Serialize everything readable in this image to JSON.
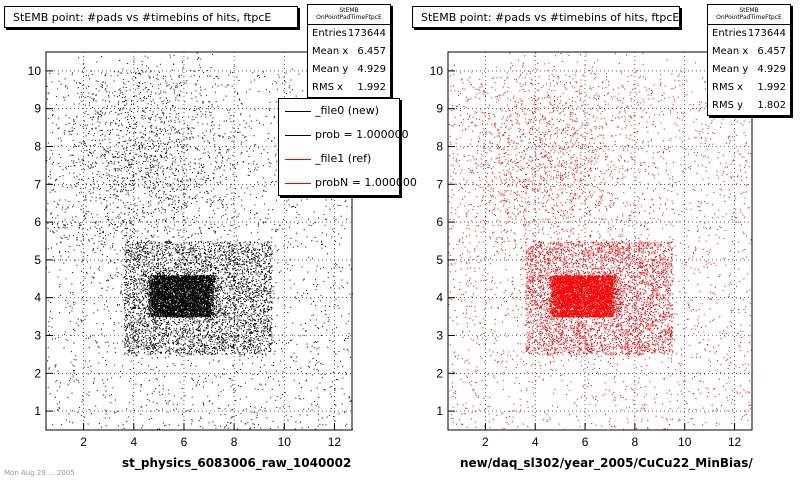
{
  "chart_data": [
    {
      "type": "scatter",
      "title": "StEMB point: #pads vs #timebins of hits, ftpcE",
      "xlabel": "st_physics_6083006_raw_1040002",
      "ylabel": "",
      "xlim": [
        0.5,
        12.7
      ],
      "ylim": [
        0.5,
        10.5
      ],
      "xticks": [
        2,
        4,
        6,
        8,
        10,
        12
      ],
      "yticks": [
        1,
        2,
        3,
        4,
        5,
        6,
        7,
        8,
        9,
        10
      ],
      "grid": true,
      "marker_color": "#000000",
      "series": [
        {
          "name": "_file0 (new)",
          "points_description_omitted": true,
          "core": {
            "x": [
              3.6,
              9.5
            ],
            "y": [
              2.5,
              5.5
            ]
          },
          "dense": {
            "x": [
              4.5,
              7.0
            ],
            "y": [
              3.5,
              4.6
            ]
          }
        }
      ],
      "stats": {
        "header": "StEMB OnPointPadTimeFtpcE",
        "rows": [
          {
            "label": "Entries",
            "value": "173644"
          },
          {
            "label": "Mean x",
            "value": "6.457"
          },
          {
            "label": "Mean y",
            "value": "4.929"
          },
          {
            "label": "RMS x",
            "value": "1.992"
          }
        ]
      },
      "legend": {
        "placement": "top-right",
        "entries": [
          {
            "label": "_file0 (new)",
            "color": "#000000"
          },
          {
            "label": "prob = 1.000000",
            "color": "#000000"
          },
          {
            "label": "_file1 (ref)",
            "color": "#ff0000"
          },
          {
            "label": "probN = 1.000000",
            "color": "#ff0000"
          }
        ]
      }
    },
    {
      "type": "scatter",
      "title": "StEMB point: #pads vs #timebins of hits, ftpcE",
      "xlabel": "new/daq_sl302/year_2005/CuCu22_MinBias/",
      "ylabel": "",
      "xlim": [
        0.5,
        12.7
      ],
      "ylim": [
        0.5,
        10.5
      ],
      "xticks": [
        2,
        4,
        6,
        8,
        10,
        12
      ],
      "yticks": [
        1,
        2,
        3,
        4,
        5,
        6,
        7,
        8,
        9,
        10
      ],
      "grid": true,
      "marker_color": "#ff0000",
      "series": [
        {
          "name": "_file1 (ref)",
          "core": {
            "x": [
              3.6,
              9.5
            ],
            "y": [
              2.5,
              5.5
            ]
          },
          "dense": {
            "x": [
              4.5,
              7.0
            ],
            "y": [
              3.5,
              4.6
            ]
          }
        }
      ],
      "stats": {
        "header": "StEMB OnPointPadTimeFtpcE",
        "rows": [
          {
            "label": "Entries",
            "value": "173644"
          },
          {
            "label": "Mean x",
            "value": "6.457"
          },
          {
            "label": "Mean y",
            "value": "4.929"
          },
          {
            "label": "RMS x",
            "value": "1.992"
          },
          {
            "label": "RMS y",
            "value": "1.802"
          }
        ]
      }
    }
  ],
  "footer": "Mon Aug 29 ... 2005"
}
